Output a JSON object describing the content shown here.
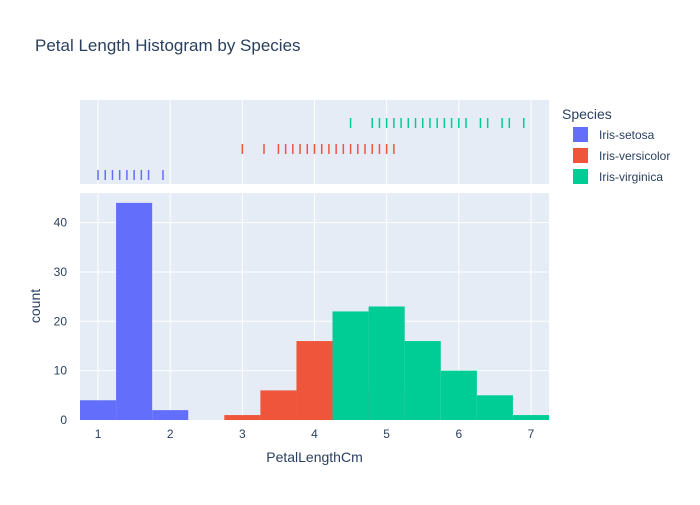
{
  "chart_data": {
    "type": "bar",
    "title": "Petal Length Histogram by Species",
    "xlabel": "PetalLengthCm",
    "ylabel": "count",
    "xlim": [
      0.75,
      7.25
    ],
    "ylim": [
      0,
      46
    ],
    "x_ticks": [
      1,
      2,
      3,
      4,
      5,
      6,
      7
    ],
    "y_ticks": [
      0,
      10,
      20,
      30,
      40
    ],
    "bin_size": 0.5,
    "grid": true,
    "barmode": "overlay",
    "legend_title": "Species",
    "legend_position": "top-right",
    "series": [
      {
        "name": "Iris-setosa",
        "color": "#636efa",
        "bins": [
          {
            "x0": 0.75,
            "x1": 1.25,
            "count": 4
          },
          {
            "x0": 1.25,
            "x1": 1.75,
            "count": 44
          },
          {
            "x0": 1.75,
            "x1": 2.25,
            "count": 2
          }
        ],
        "rug": [
          1.0,
          1.1,
          1.2,
          1.3,
          1.4,
          1.5,
          1.6,
          1.7,
          1.9
        ]
      },
      {
        "name": "Iris-versicolor",
        "color": "#ef553b",
        "bins": [
          {
            "x0": 2.75,
            "x1": 3.25,
            "count": 1
          },
          {
            "x0": 3.25,
            "x1": 3.75,
            "count": 6
          },
          {
            "x0": 3.75,
            "x1": 4.25,
            "count": 16
          },
          {
            "x0": 4.25,
            "x1": 4.75,
            "count": 21
          },
          {
            "x0": 4.75,
            "x1": 5.25,
            "count": 6
          }
        ],
        "rug": [
          3.0,
          3.3,
          3.5,
          3.6,
          3.7,
          3.8,
          3.9,
          4.0,
          4.1,
          4.2,
          4.3,
          4.4,
          4.5,
          4.6,
          4.7,
          4.8,
          4.9,
          5.0,
          5.1
        ]
      },
      {
        "name": "Iris-virginica",
        "color": "#00cc96",
        "bins": [
          {
            "x0": 4.25,
            "x1": 4.75,
            "count": 22
          },
          {
            "x0": 4.75,
            "x1": 5.25,
            "count": 23
          },
          {
            "x0": 5.25,
            "x1": 5.75,
            "count": 16
          },
          {
            "x0": 5.75,
            "x1": 6.25,
            "count": 10
          },
          {
            "x0": 6.25,
            "x1": 6.75,
            "count": 5
          },
          {
            "x0": 6.75,
            "x1": 7.25,
            "count": 1
          }
        ],
        "rug": [
          4.5,
          4.8,
          4.9,
          5.0,
          5.1,
          5.2,
          5.3,
          5.4,
          5.5,
          5.6,
          5.7,
          5.8,
          5.9,
          6.0,
          6.1,
          6.3,
          6.4,
          6.6,
          6.7,
          6.9
        ]
      }
    ]
  }
}
